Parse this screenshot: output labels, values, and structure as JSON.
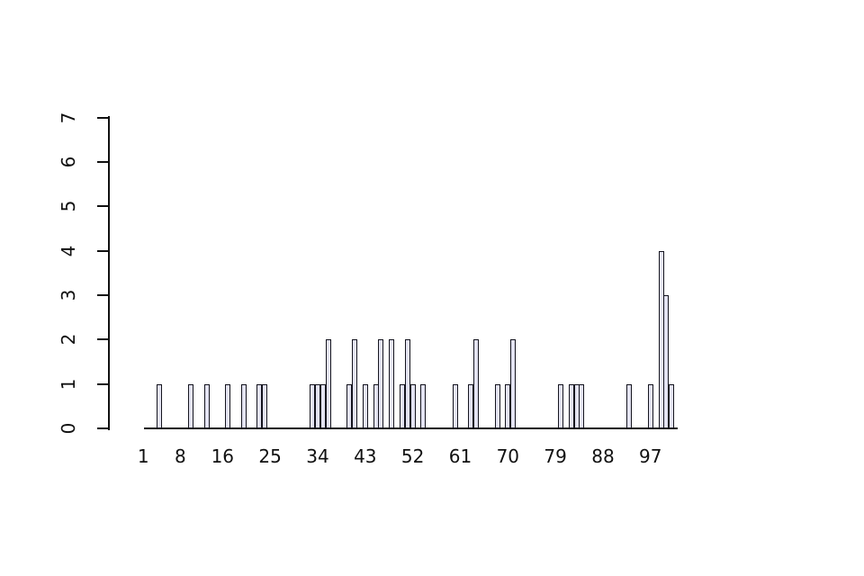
{
  "figure": {
    "background_color": "#ffffff",
    "axis_color": "#111111",
    "text_color": "#111111"
  },
  "chart_data": {
    "type": "bar",
    "title": "",
    "xlabel": "",
    "ylabel": "",
    "grid": false,
    "legend": null,
    "bar_fill": "#e3e3f2",
    "bar_border": "#14141e",
    "n_slots": 101,
    "x_tick_labels": [
      "1",
      "8",
      "16",
      "25",
      "34",
      "43",
      "52",
      "61",
      "70",
      "79",
      "88",
      "97"
    ],
    "x_tick_positions": [
      1,
      8,
      16,
      25,
      34,
      43,
      52,
      61,
      70,
      79,
      88,
      97
    ],
    "y_tick_labels": [
      "0",
      "1",
      "2",
      "3",
      "4",
      "5",
      "6",
      "7"
    ],
    "y_tick_values": [
      0,
      1,
      2,
      3,
      4,
      5,
      6,
      7
    ],
    "ylim": [
      0,
      7
    ],
    "categories_note": "bar slots indexed 1..101, zero values are empty slots",
    "values": [
      0,
      0,
      0,
      1,
      0,
      0,
      0,
      0,
      0,
      1,
      0,
      0,
      1,
      0,
      0,
      0,
      1,
      0,
      0,
      1,
      0,
      0,
      1,
      1,
      0,
      0,
      0,
      0,
      0,
      0,
      0,
      0,
      1,
      1,
      1,
      2,
      0,
      0,
      0,
      1,
      2,
      0,
      1,
      0,
      1,
      2,
      0,
      2,
      0,
      1,
      2,
      1,
      0,
      1,
      0,
      0,
      0,
      0,
      0,
      1,
      0,
      0,
      1,
      2,
      0,
      0,
      0,
      1,
      0,
      1,
      2,
      0,
      0,
      0,
      0,
      0,
      0,
      0,
      0,
      1,
      0,
      1,
      1,
      1,
      0,
      0,
      0,
      0,
      0,
      0,
      0,
      0,
      1,
      0,
      0,
      0,
      1,
      0,
      4,
      3,
      1
    ]
  }
}
